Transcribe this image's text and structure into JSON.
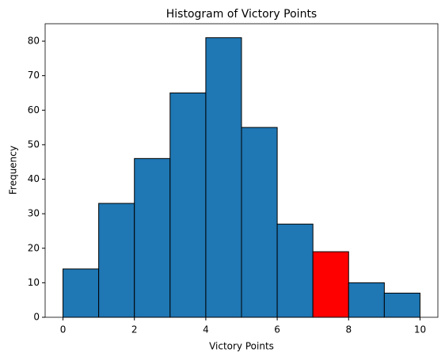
{
  "chart_data": {
    "type": "histogram",
    "title": "Histogram of Victory Points",
    "xlabel": "Victory Points",
    "ylabel": "Frequency",
    "bins": [
      0,
      1,
      2,
      3,
      4,
      5,
      6,
      7,
      8,
      9,
      10
    ],
    "counts": [
      14,
      33,
      46,
      65,
      81,
      55,
      27,
      19,
      10,
      7
    ],
    "colors": [
      "#1f77b4",
      "#1f77b4",
      "#1f77b4",
      "#1f77b4",
      "#1f77b4",
      "#1f77b4",
      "#1f77b4",
      "#ff0000",
      "#1f77b4",
      "#1f77b4"
    ],
    "edgecolor": "#000000",
    "xlim": [
      -0.5,
      10.5
    ],
    "xticks": [
      0,
      2,
      4,
      6,
      8,
      10
    ],
    "ylim": [
      0,
      85.05
    ],
    "yticks": [
      0,
      10,
      20,
      30,
      40,
      50,
      60,
      70,
      80
    ]
  }
}
